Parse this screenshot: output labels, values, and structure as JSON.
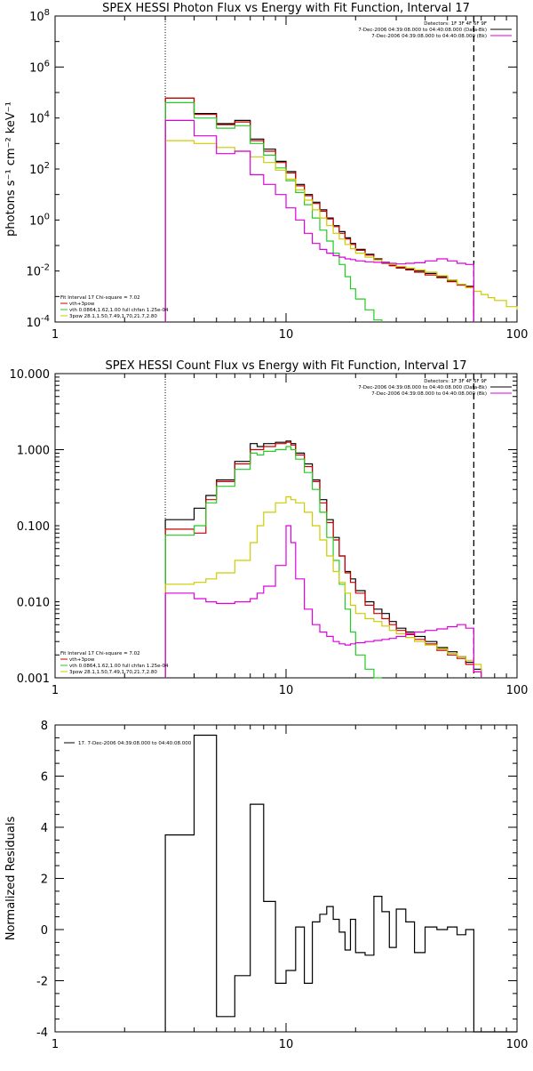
{
  "chart_data": [
    {
      "type": "line",
      "title": "SPEX HESSI Photon Flux vs Energy with Fit Function, Interval 17",
      "xlabel": "",
      "ylabel": "photons s⁻¹ cm⁻² keV⁻¹",
      "xscale": "log",
      "yscale": "log",
      "xlim": [
        1,
        100
      ],
      "ylim": [
        0.0001,
        100000000
      ],
      "xticklabels": [
        "1",
        "10",
        "100"
      ],
      "yticklabels": [
        "10^-4",
        "10^-2",
        "10^0",
        "10^2",
        "10^4",
        "10^6",
        "10^8"
      ],
      "legend_top": [
        "Detectors: 1F 3F 4F 6F 9F",
        "7-Dec-2006 04:39:08.000 to 04:40:08.000 (Data-Bk)",
        "7-Dec-2006 04:39:08.000 to 04:40:08.000 (Bk)"
      ],
      "legend_bottom": [
        "Fit Interval 17    Chi-square = 7.02",
        "vth+3pow",
        "vth 0.0864,1.62,1.00  full chfan 1.25e-04",
        "3pow 28.1,1.50,7.49,1.70,21.7,2.80"
      ],
      "vlines": [
        3,
        65
      ],
      "x": [
        3,
        3.5,
        4,
        4.5,
        5,
        6,
        7,
        7.5,
        8,
        9,
        10,
        11,
        12,
        13,
        14,
        15,
        16,
        17,
        18,
        19,
        20,
        22,
        24,
        26,
        28,
        30,
        33,
        36,
        40,
        45,
        50,
        55,
        60,
        65,
        70,
        75,
        80,
        90,
        100
      ],
      "series": [
        {
          "name": "Data-Bk",
          "color": "#000000",
          "values": [
            60000,
            60000,
            15000,
            15000,
            6000,
            8000,
            1500,
            1500,
            600,
            200,
            80,
            25,
            10,
            5,
            2.5,
            1.2,
            0.6,
            0.35,
            0.2,
            0.12,
            0.07,
            0.045,
            0.03,
            0.022,
            0.017,
            0.014,
            0.012,
            0.01,
            0.008,
            0.006,
            0.004,
            0.003,
            0.0025,
            null,
            null,
            null,
            null,
            null,
            null
          ]
        },
        {
          "name": "vth+3pow",
          "color": "#cc0000",
          "values": [
            60000,
            60000,
            14000,
            14000,
            5500,
            7000,
            1300,
            1300,
            500,
            180,
            70,
            22,
            9,
            4.5,
            2.2,
            1.1,
            0.55,
            0.3,
            0.18,
            0.11,
            0.065,
            0.042,
            0.028,
            0.02,
            0.016,
            0.013,
            0.011,
            0.009,
            0.007,
            0.0055,
            0.0038,
            0.0028,
            0.0024,
            null,
            null,
            null,
            null,
            null,
            null
          ]
        },
        {
          "name": "vth",
          "color": "#22cc22",
          "values": [
            40000,
            40000,
            10000,
            10000,
            4000,
            5000,
            1000,
            1000,
            350,
            110,
            35,
            12,
            4,
            1.2,
            0.4,
            0.15,
            0.05,
            0.018,
            0.006,
            0.002,
            0.0008,
            0.0003,
            0.00012,
            null,
            null,
            null,
            null,
            null,
            null,
            null,
            null,
            null,
            null,
            null,
            null,
            null,
            null,
            null,
            null
          ]
        },
        {
          "name": "3pow",
          "color": "#cccc00",
          "values": [
            1300,
            1300,
            1000,
            1000,
            700,
            500,
            300,
            300,
            180,
            90,
            40,
            15,
            6,
            2.5,
            1.2,
            0.6,
            0.3,
            0.18,
            0.11,
            0.075,
            0.05,
            0.035,
            0.027,
            0.021,
            0.018,
            0.015,
            0.013,
            0.011,
            0.009,
            0.0065,
            0.0045,
            0.003,
            0.0022,
            0.0016,
            0.0012,
            0.0009,
            0.0007,
            0.0004,
            0.0003
          ]
        },
        {
          "name": "Bk",
          "color": "#dd00dd",
          "values": [
            8000,
            8000,
            2000,
            2000,
            400,
            500,
            60,
            60,
            25,
            10,
            3,
            1,
            0.3,
            0.12,
            0.07,
            0.05,
            0.04,
            0.035,
            0.03,
            0.028,
            0.025,
            0.023,
            0.022,
            0.021,
            0.02,
            0.019,
            0.02,
            0.021,
            0.025,
            0.03,
            0.025,
            0.02,
            0.018,
            null,
            null,
            null,
            null,
            null,
            null
          ]
        }
      ]
    },
    {
      "type": "line",
      "title": "SPEX HESSI Count Flux vs Energy with Fit Function, Interval 17",
      "xlabel": "",
      "ylabel": "",
      "xscale": "log",
      "yscale": "log",
      "xlim": [
        1,
        100
      ],
      "ylim": [
        0.001,
        10
      ],
      "xticklabels": [
        "1",
        "10",
        "100"
      ],
      "yticklabels": [
        "0.001",
        "0.010",
        "0.100",
        "1.000",
        "10.000"
      ],
      "legend_top": [
        "Detectors: 1F 3F 4F 6F 9F",
        "7-Dec-2006 04:39:08.000 to 04:40:08.000 (Data-Bk)",
        "7-Dec-2006 04:39:08.000 to 04:40:08.000 (Bk)"
      ],
      "legend_bottom": [
        "Fit Interval 17    Chi-square = 7.02",
        "vth+3pow",
        "vth 0.0864,1.62,1.00  full chfan 1.25e-04",
        "3pow 28.1,1.50,7.49,1.70,21.7,2.80"
      ],
      "vlines": [
        3,
        65
      ],
      "x": [
        3,
        3.5,
        4,
        4.5,
        5,
        6,
        7,
        7.5,
        8,
        9,
        10,
        10.5,
        11,
        12,
        13,
        14,
        15,
        16,
        17,
        18,
        19,
        20,
        22,
        24,
        26,
        28,
        30,
        33,
        36,
        40,
        45,
        50,
        55,
        60,
        65,
        70,
        75,
        80,
        90,
        100
      ],
      "series": [
        {
          "name": "Data-Bk",
          "color": "#000000",
          "values": [
            0.12,
            0.12,
            0.17,
            0.25,
            0.4,
            0.7,
            1.2,
            1.1,
            1.2,
            1.25,
            1.3,
            1.2,
            0.9,
            0.65,
            0.4,
            0.22,
            0.12,
            0.07,
            0.04,
            0.025,
            0.02,
            0.014,
            0.01,
            0.008,
            0.007,
            0.0055,
            0.0045,
            0.004,
            0.0035,
            0.003,
            0.0025,
            0.0022,
            0.0019,
            0.0016,
            0.0013,
            null,
            null,
            null,
            null,
            null
          ]
        },
        {
          "name": "vth+3pow",
          "color": "#cc0000",
          "values": [
            0.09,
            0.09,
            0.08,
            0.22,
            0.38,
            0.65,
            1.0,
            1.0,
            1.1,
            1.2,
            1.25,
            1.15,
            0.85,
            0.6,
            0.38,
            0.2,
            0.11,
            0.065,
            0.04,
            0.024,
            0.018,
            0.013,
            0.009,
            0.007,
            0.006,
            0.005,
            0.0042,
            0.0037,
            0.0032,
            0.0028,
            0.0023,
            0.002,
            0.0018,
            0.0015,
            0.0012,
            null,
            null,
            null,
            null,
            null
          ]
        },
        {
          "name": "vth",
          "color": "#22cc22",
          "values": [
            0.075,
            0.075,
            0.1,
            0.2,
            0.33,
            0.55,
            0.9,
            0.85,
            0.95,
            1.0,
            1.1,
            1.0,
            0.75,
            0.5,
            0.3,
            0.15,
            0.07,
            0.035,
            0.017,
            0.008,
            0.004,
            0.002,
            0.0013,
            0.0009,
            null,
            null,
            null,
            null,
            null,
            null,
            null,
            null,
            null,
            null,
            null,
            null,
            null,
            null,
            null,
            null
          ]
        },
        {
          "name": "3pow",
          "color": "#cccc00",
          "values": [
            0.017,
            0.017,
            0.018,
            0.02,
            0.024,
            0.035,
            0.06,
            0.1,
            0.15,
            0.2,
            0.24,
            0.22,
            0.2,
            0.15,
            0.1,
            0.065,
            0.04,
            0.025,
            0.018,
            0.013,
            0.009,
            0.007,
            0.006,
            0.0055,
            0.0048,
            0.0042,
            0.0038,
            0.0034,
            0.003,
            0.0027,
            0.0024,
            0.0021,
            0.0019,
            0.0017,
            0.0015,
            null,
            null,
            null,
            null,
            null
          ]
        },
        {
          "name": "Bk",
          "color": "#dd00dd",
          "values": [
            0.013,
            0.013,
            0.011,
            0.01,
            0.0095,
            0.01,
            0.011,
            0.013,
            0.016,
            0.03,
            0.1,
            0.06,
            0.02,
            0.008,
            0.005,
            0.004,
            0.0035,
            0.003,
            0.0028,
            0.0027,
            0.0028,
            0.0029,
            0.003,
            0.0031,
            0.0032,
            0.0033,
            0.0035,
            0.0038,
            0.004,
            0.0042,
            0.0044,
            0.0047,
            0.005,
            0.0045,
            0.0012,
            null,
            null,
            null,
            null,
            null
          ]
        }
      ]
    },
    {
      "type": "line",
      "title": "",
      "xlabel": "",
      "ylabel": "Normalized Residuals",
      "xscale": "log",
      "yscale": "linear",
      "xlim": [
        1,
        100
      ],
      "ylim": [
        -4,
        8
      ],
      "xticklabels": [
        "1",
        "10",
        "100"
      ],
      "yticklabels": [
        "-4",
        "-2",
        "0",
        "2",
        "4",
        "6",
        "8"
      ],
      "legend": [
        "17.  7-Dec-2006 04:39:08.000 to 04:40:08.000"
      ],
      "series": [
        {
          "name": "",
          "color": "#000000",
          "x": [
            3,
            4,
            5,
            6,
            7,
            8,
            9,
            10,
            11,
            12,
            13,
            14,
            15,
            16,
            17,
            18,
            19,
            20,
            22,
            24,
            26,
            28,
            30,
            33,
            36,
            40,
            45,
            50,
            55,
            60,
            65
          ],
          "values": [
            3.7,
            7.6,
            -3.4,
            -1.8,
            4.9,
            1.1,
            -2.1,
            -1.6,
            0.1,
            -2.1,
            0.3,
            0.6,
            0.9,
            0.4,
            -0.1,
            -0.8,
            0.4,
            -0.9,
            -1.0,
            1.3,
            0.7,
            -0.7,
            0.8,
            0.3,
            -0.9,
            0.1,
            0.0,
            0.1,
            -0.2,
            0.0,
            -4.2
          ]
        }
      ]
    }
  ]
}
